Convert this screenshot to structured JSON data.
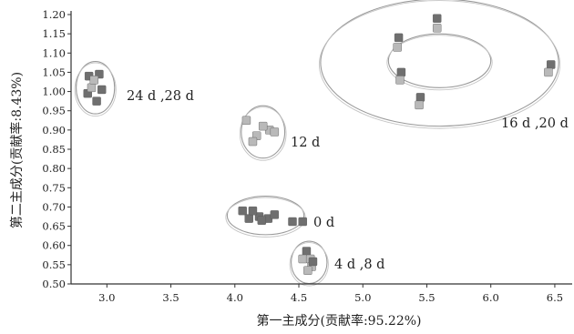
{
  "chart_data": {
    "type": "scatter",
    "title": "",
    "xlabel": "第一主成分(贡献率:95.22%)",
    "ylabel": "第二主成分(贡献率:8.43%)",
    "xlim": [
      2.72,
      6.65
    ],
    "ylim": [
      0.5,
      1.2
    ],
    "xticks": [
      "3.0",
      "3.5",
      "4.0",
      "4.5",
      "5.0",
      "5.5",
      "6.0",
      "6.5"
    ],
    "yticks": [
      "0.50",
      "0.55",
      "0.60",
      "0.65",
      "0.70",
      "0.75",
      "0.80",
      "0.85",
      "0.90",
      "0.95",
      "1.00",
      "1.05",
      "1.10",
      "1.15",
      "1.20"
    ],
    "colors": {
      "dark": "#6f6f6f",
      "light": "#b9b9b9",
      "ellipse": "#9a9a9a",
      "axis": "#333333"
    },
    "groups": [
      {
        "label": "24 d ,28 d",
        "ellipse": {
          "cx": 2.91,
          "cy": 1.01,
          "rx": 0.15,
          "ry": 0.068
        },
        "points": [
          {
            "x": 2.86,
            "y": 1.04,
            "shade": "dark"
          },
          {
            "x": 2.94,
            "y": 1.045,
            "shade": "dark"
          },
          {
            "x": 2.85,
            "y": 0.995,
            "shade": "dark"
          },
          {
            "x": 2.96,
            "y": 1.005,
            "shade": "dark"
          },
          {
            "x": 2.92,
            "y": 0.975,
            "shade": "dark"
          },
          {
            "x": 2.88,
            "y": 1.01,
            "shade": "light"
          },
          {
            "x": 2.9,
            "y": 1.03,
            "shade": "light"
          }
        ]
      },
      {
        "label": "12 d",
        "ellipse": {
          "cx": 4.22,
          "cy": 0.895,
          "rx": 0.17,
          "ry": 0.068
        },
        "points": [
          {
            "x": 4.09,
            "y": 0.925,
            "shade": "light"
          },
          {
            "x": 4.27,
            "y": 0.9,
            "shade": "light"
          },
          {
            "x": 4.31,
            "y": 0.895,
            "shade": "light"
          },
          {
            "x": 4.17,
            "y": 0.885,
            "shade": "light"
          },
          {
            "x": 4.14,
            "y": 0.87,
            "shade": "light"
          },
          {
            "x": 4.22,
            "y": 0.91,
            "shade": "light"
          }
        ]
      },
      {
        "label": "0 d",
        "ellipse": {
          "cx": 4.24,
          "cy": 0.678,
          "rx": 0.3,
          "ry": 0.05
        },
        "points": [
          {
            "x": 4.06,
            "y": 0.69,
            "shade": "dark"
          },
          {
            "x": 4.11,
            "y": 0.67,
            "shade": "dark"
          },
          {
            "x": 4.19,
            "y": 0.675,
            "shade": "dark"
          },
          {
            "x": 4.26,
            "y": 0.67,
            "shade": "dark"
          },
          {
            "x": 4.31,
            "y": 0.68,
            "shade": "dark"
          },
          {
            "x": 4.14,
            "y": 0.69,
            "shade": "dark"
          },
          {
            "x": 4.21,
            "y": 0.665,
            "shade": "dark"
          },
          {
            "x": 4.45,
            "y": 0.662,
            "shade": "dark"
          },
          {
            "x": 4.53,
            "y": 0.662,
            "shade": "dark"
          }
        ]
      },
      {
        "label": "4 d ,8 d",
        "ellipse": {
          "cx": 4.58,
          "cy": 0.556,
          "rx": 0.14,
          "ry": 0.055
        },
        "points": [
          {
            "x": 4.56,
            "y": 0.585,
            "shade": "dark"
          },
          {
            "x": 4.53,
            "y": 0.565,
            "shade": "light"
          },
          {
            "x": 4.59,
            "y": 0.565,
            "shade": "light"
          },
          {
            "x": 4.6,
            "y": 0.545,
            "shade": "light"
          },
          {
            "x": 4.57,
            "y": 0.535,
            "shade": "light"
          },
          {
            "x": 4.61,
            "y": 0.558,
            "shade": "dark"
          }
        ]
      },
      {
        "label": "16 d ,20 d",
        "ellipse": {
          "cx": 5.6,
          "cy": 1.075,
          "rx": 0.93,
          "ry": 0.165
        },
        "inner_ellipse": {
          "cx": 5.6,
          "cy": 1.08,
          "rx": 0.4,
          "ry": 0.07
        },
        "points": [
          {
            "x": 5.58,
            "y": 1.19,
            "shade": "dark"
          },
          {
            "x": 5.58,
            "y": 1.165,
            "shade": "light"
          },
          {
            "x": 5.28,
            "y": 1.14,
            "shade": "dark"
          },
          {
            "x": 5.27,
            "y": 1.115,
            "shade": "light"
          },
          {
            "x": 5.3,
            "y": 1.05,
            "shade": "dark"
          },
          {
            "x": 5.29,
            "y": 1.03,
            "shade": "light"
          },
          {
            "x": 6.47,
            "y": 1.07,
            "shade": "dark"
          },
          {
            "x": 6.45,
            "y": 1.05,
            "shade": "light"
          },
          {
            "x": 5.45,
            "y": 0.985,
            "shade": "dark"
          },
          {
            "x": 5.44,
            "y": 0.965,
            "shade": "light"
          }
        ]
      }
    ]
  }
}
